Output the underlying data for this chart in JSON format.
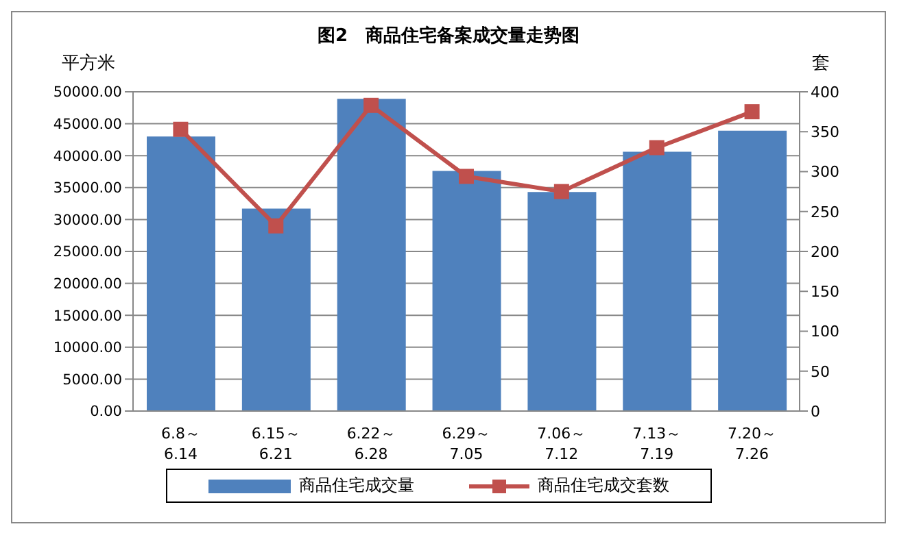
{
  "chart_data": {
    "type": "bar",
    "title": "图2　商品住宅备案成交量走势图",
    "ylabel": "平方米",
    "y2label": "套",
    "categories": [
      "6.8～\n6.14",
      "6.15～\n6.21",
      "6.22～\n6.28",
      "6.29～\n7.05",
      "7.06～\n7.12",
      "7.13～\n7.19",
      "7.20～\n7.26"
    ],
    "series": [
      {
        "name": "商品住宅成交量",
        "color": "#4f81bd",
        "values": [
          43000,
          31700,
          48900,
          37600,
          34300,
          40600,
          43900
        ]
      },
      {
        "name": "商品住宅成交套数",
        "type": "line",
        "axis": "y2",
        "color": "#c0504d",
        "values": [
          353,
          232,
          383,
          294,
          275,
          330,
          375
        ]
      }
    ],
    "ylim": [
      0,
      50000
    ],
    "yticks": [
      {
        "value": 0,
        "label": "0.00"
      },
      {
        "value": 5000,
        "label": "5000.00"
      },
      {
        "value": 10000,
        "label": "10000.00"
      },
      {
        "value": 15000,
        "label": "15000.00"
      },
      {
        "value": 20000,
        "label": "20000.00"
      },
      {
        "value": 25000,
        "label": "25000.00"
      },
      {
        "value": 30000,
        "label": "30000.00"
      },
      {
        "value": 35000,
        "label": "35000.00"
      },
      {
        "value": 40000,
        "label": "40000.00"
      },
      {
        "value": 45000,
        "label": "45000.00"
      },
      {
        "value": 50000,
        "label": "50000.00"
      }
    ],
    "y2lim": [
      0,
      400
    ],
    "y2ticks": [
      0,
      50,
      100,
      150,
      200,
      250,
      300,
      350,
      400
    ],
    "grid": "y",
    "legend": "bottom",
    "marker": "square"
  }
}
